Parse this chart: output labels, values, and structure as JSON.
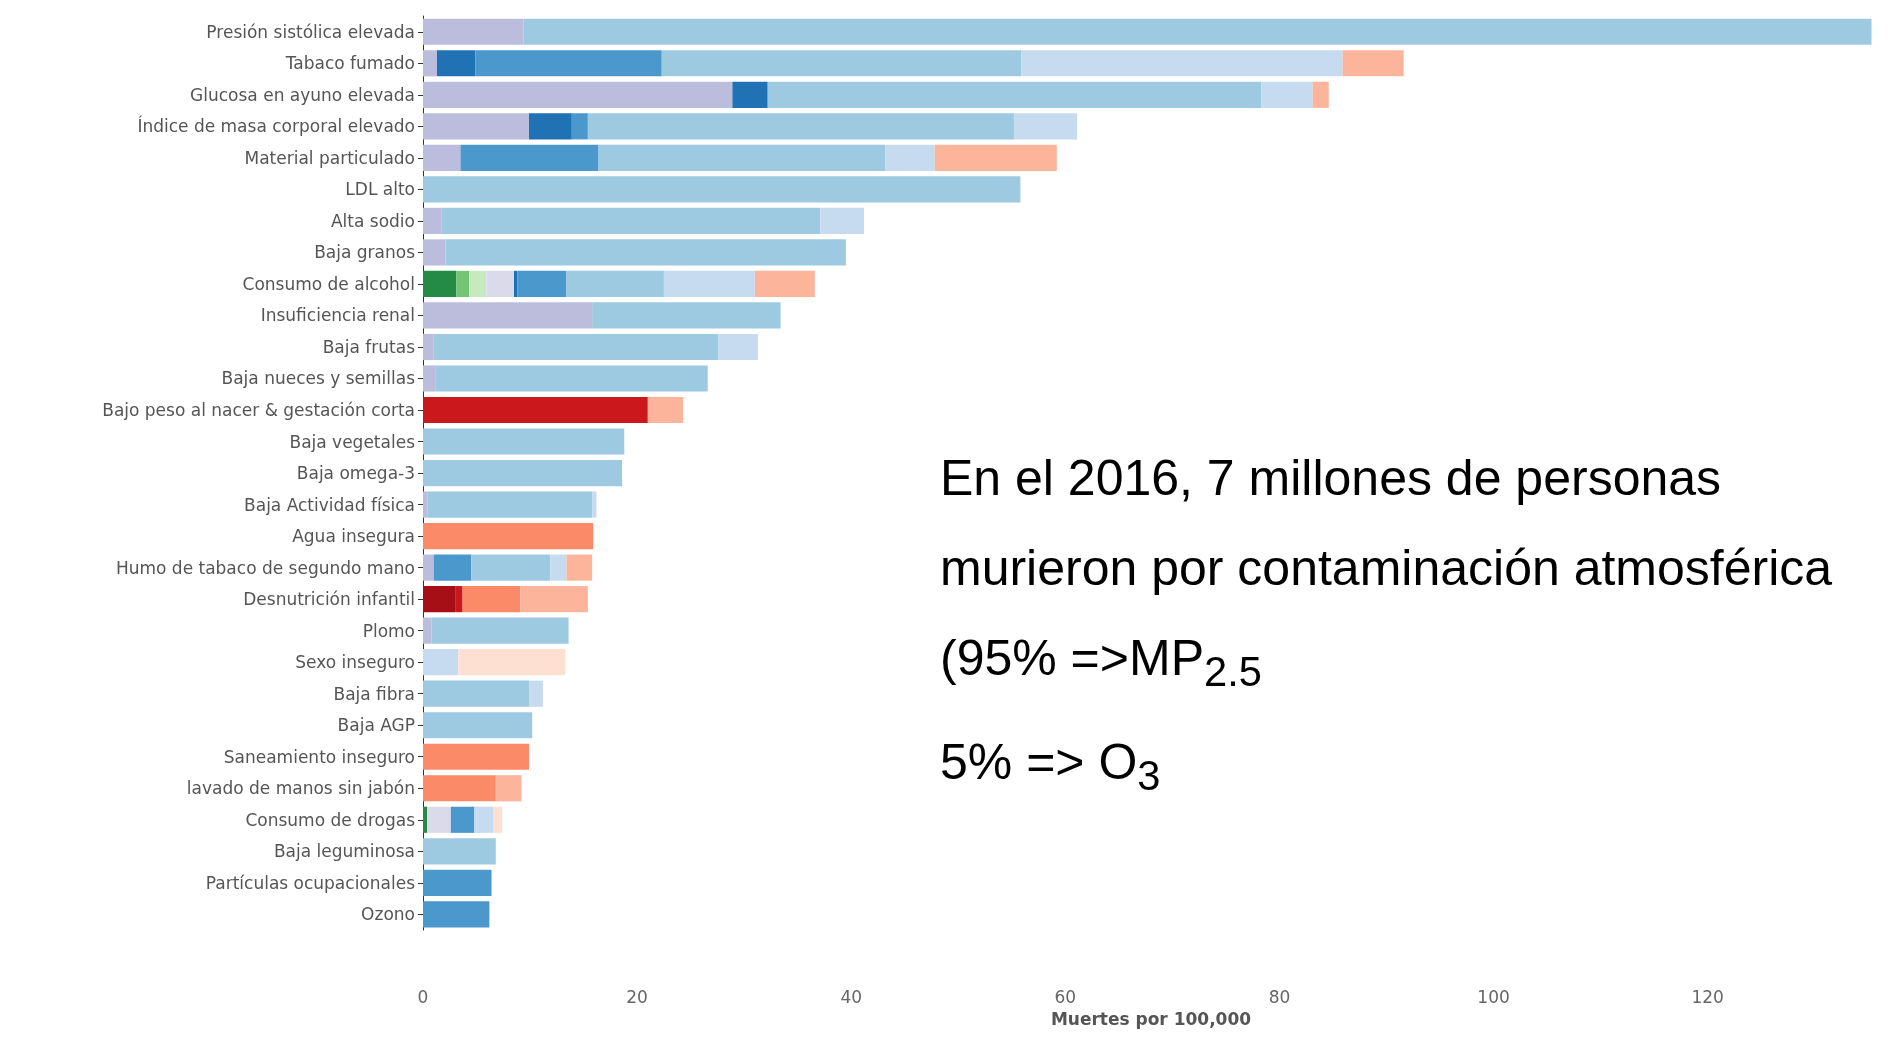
{
  "chart_data": {
    "type": "bar",
    "orientation": "horizontal",
    "stacked": true,
    "xlabel": "Muertes por 100,000",
    "categories": [
      "Presión sistólica elevada",
      "Tabaco fumado",
      "Glucosa en ayuno elevada",
      "Índice de masa corporal elevado",
      "Material particulado",
      "LDL alto",
      "Alta sodio",
      "Baja granos",
      "Consumo de alcohol",
      "Insuficiencia renal",
      "Baja frutas",
      "Baja nueces y semillas",
      "Bajo peso al nacer & gestación corta",
      "Baja vegetales",
      "Baja omega-3",
      "Baja Actividad física",
      "Agua insegura",
      "Humo de tabaco de segundo mano",
      "Desnutrición infantil",
      "Plomo",
      "Sexo inseguro",
      "Baja fibra",
      "Baja AGP",
      "Saneamiento inseguro",
      "lavado de manos sin jabón",
      "Consumo de drogas",
      "Baja leguminosa",
      "Partículas ocupacionales",
      "Ozono"
    ],
    "series": [
      {
        "color": "#238b45",
        "values": [
          null,
          null,
          null,
          null,
          null,
          null,
          null,
          null,
          3.1,
          null,
          null,
          null,
          null,
          null,
          null,
          null,
          null,
          null,
          null,
          null,
          null,
          null,
          null,
          null,
          null,
          0.4,
          null,
          null,
          null
        ]
      },
      {
        "color": "#74c476",
        "values": [
          null,
          null,
          null,
          null,
          null,
          null,
          null,
          null,
          1.2,
          null,
          null,
          null,
          null,
          null,
          null,
          null,
          null,
          null,
          null,
          null,
          null,
          null,
          null,
          null,
          null,
          null,
          null,
          null,
          null
        ]
      },
      {
        "color": "#c7e9c0",
        "values": [
          null,
          null,
          null,
          null,
          null,
          null,
          null,
          null,
          1.6,
          null,
          null,
          null,
          null,
          null,
          null,
          null,
          null,
          null,
          null,
          null,
          null,
          null,
          null,
          null,
          null,
          null,
          null,
          null,
          null
        ]
      },
      {
        "color": "#bcbddc",
        "values": [
          9.4,
          1.3,
          28.9,
          9.9,
          3.5,
          null,
          1.7,
          2.1,
          null,
          15.8,
          1.0,
          1.2,
          null,
          null,
          null,
          0.4,
          null,
          1.0,
          null,
          0.8,
          null,
          null,
          null,
          null,
          null,
          null,
          null,
          null,
          null
        ]
      },
      {
        "color": "#dadaeb",
        "values": [
          null,
          null,
          null,
          null,
          null,
          null,
          null,
          null,
          2.6,
          null,
          null,
          null,
          null,
          null,
          null,
          null,
          null,
          null,
          null,
          null,
          null,
          null,
          null,
          null,
          null,
          2.2,
          null,
          null,
          null
        ]
      },
      {
        "color": "#a50f15",
        "values": [
          null,
          null,
          null,
          null,
          null,
          null,
          null,
          null,
          null,
          null,
          null,
          null,
          null,
          null,
          null,
          null,
          null,
          null,
          3.0,
          null,
          null,
          null,
          null,
          null,
          null,
          null,
          null,
          null,
          null
        ]
      },
      {
        "color": "#cb181d",
        "values": [
          null,
          null,
          null,
          null,
          null,
          null,
          null,
          null,
          null,
          null,
          null,
          null,
          21.0,
          null,
          null,
          null,
          null,
          null,
          0.7,
          null,
          null,
          null,
          null,
          null,
          null,
          null,
          null,
          null,
          null
        ]
      },
      {
        "color": "#2171b5",
        "values": [
          null,
          3.6,
          3.3,
          4.0,
          null,
          null,
          null,
          null,
          0.3,
          null,
          null,
          null,
          null,
          null,
          null,
          null,
          null,
          null,
          null,
          null,
          null,
          null,
          null,
          null,
          null,
          null,
          null,
          null,
          null
        ]
      },
      {
        "color": "#4a98cc",
        "values": [
          null,
          17.4,
          null,
          1.5,
          12.9,
          null,
          null,
          null,
          4.6,
          null,
          null,
          null,
          null,
          null,
          null,
          null,
          null,
          3.5,
          null,
          null,
          null,
          null,
          null,
          null,
          null,
          2.2,
          null,
          6.4,
          6.2
        ]
      },
      {
        "color": "#9ecae1",
        "values": [
          125.9,
          33.6,
          46.1,
          39.8,
          26.8,
          55.8,
          35.4,
          37.4,
          9.1,
          17.6,
          26.6,
          25.4,
          null,
          18.8,
          18.6,
          15.4,
          null,
          7.4,
          null,
          12.8,
          null,
          9.9,
          10.2,
          null,
          null,
          null,
          6.8,
          null,
          null
        ]
      },
      {
        "color": "#c6dbef",
        "values": [
          null,
          30,
          4.8,
          5.9,
          4.6,
          null,
          4.1,
          null,
          8.5,
          null,
          3.7,
          null,
          null,
          null,
          null,
          0.4,
          null,
          1.5,
          null,
          null,
          3.3,
          1.3,
          null,
          null,
          null,
          1.8,
          null,
          null,
          null
        ]
      },
      {
        "color": "#fb8a68",
        "values": [
          null,
          null,
          null,
          null,
          null,
          null,
          null,
          null,
          null,
          null,
          null,
          null,
          null,
          null,
          null,
          null,
          15.9,
          null,
          5.4,
          null,
          null,
          null,
          null,
          9.9,
          6.8,
          null,
          null,
          null,
          null
        ]
      },
      {
        "color": "#fcb59a",
        "values": [
          null,
          5.7,
          1.5,
          null,
          11.4,
          null,
          null,
          null,
          5.6,
          null,
          null,
          null,
          3.3,
          null,
          null,
          null,
          null,
          2.4,
          6.3,
          null,
          null,
          null,
          null,
          null,
          2.4,
          null,
          null,
          null,
          null
        ]
      },
      {
        "color": "#fee0d2",
        "values": [
          null,
          null,
          null,
          null,
          null,
          null,
          null,
          null,
          null,
          null,
          null,
          null,
          null,
          null,
          null,
          null,
          null,
          null,
          null,
          null,
          10.0,
          null,
          null,
          null,
          null,
          0.8,
          null,
          null,
          null
        ]
      }
    ],
    "xlim": [
      0,
      136
    ],
    "xticks": [
      0,
      20,
      40,
      60,
      80,
      100,
      120
    ],
    "grid": false,
    "annotations": [
      "En el 2016, 7 millones de personas",
      "murieron por contaminación atmosférica",
      "(95% =>MP$_{2.5}$",
      "5% => O$_{3}$"
    ]
  }
}
